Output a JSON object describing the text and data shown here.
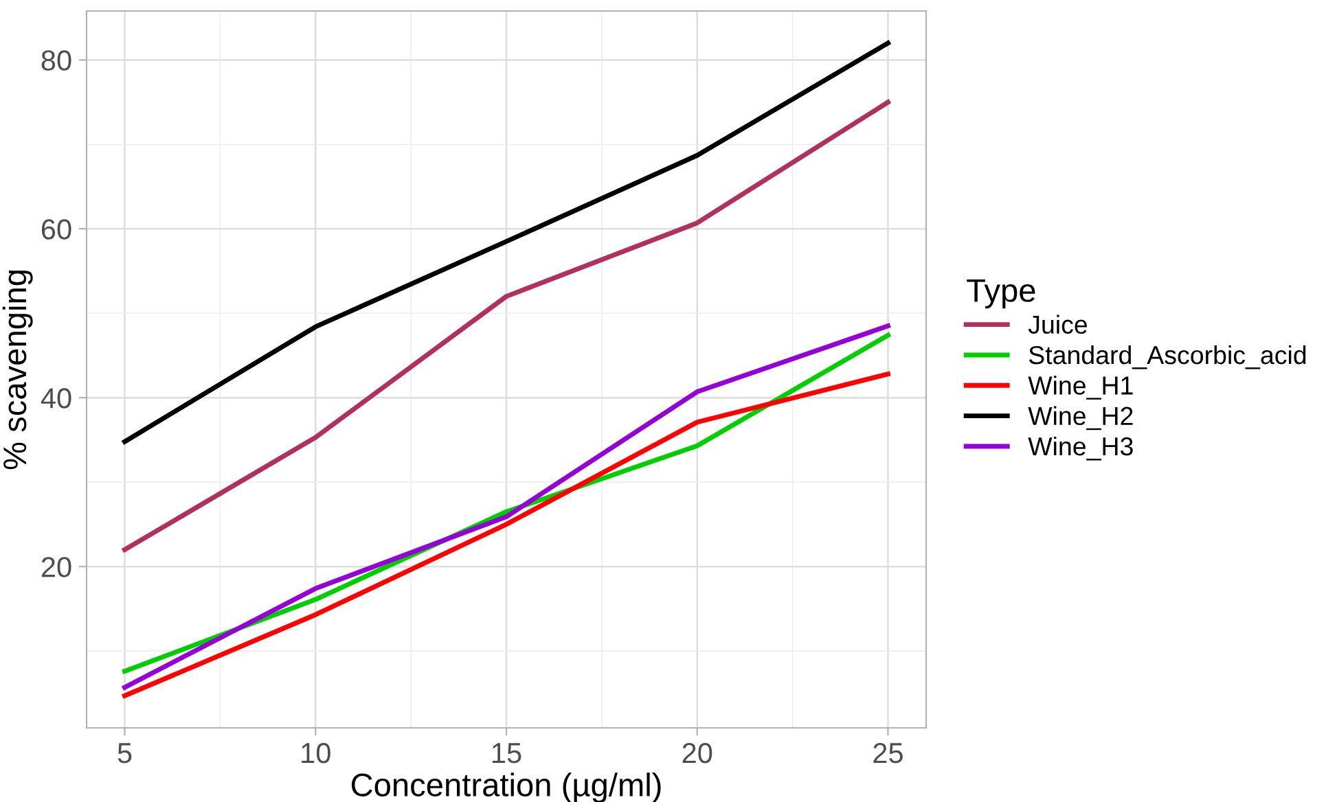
{
  "chart_data": {
    "type": "line",
    "xlabel": "Concentration (µg/ml)",
    "ylabel": "% scavenging",
    "legend_title": "Type",
    "x": [
      5,
      10,
      15,
      20,
      25
    ],
    "series": [
      {
        "name": "Juice",
        "color": "#b03060",
        "values": [
          22.0,
          35.3,
          52.0,
          60.7,
          75.0
        ]
      },
      {
        "name": "Standard_Ascorbic_acid",
        "color": "#00cd00",
        "values": [
          7.6,
          16.1,
          26.5,
          34.3,
          47.4
        ]
      },
      {
        "name": "Wine_H1",
        "color": "#ff0000",
        "values": [
          4.7,
          14.3,
          25.0,
          37.1,
          42.8
        ]
      },
      {
        "name": "Wine_H2",
        "color": "#000000",
        "values": [
          34.8,
          48.4,
          58.5,
          68.7,
          82.0
        ]
      },
      {
        "name": "Wine_H3",
        "color": "#9400d3",
        "values": [
          5.7,
          17.4,
          25.9,
          40.7,
          48.5
        ]
      }
    ],
    "xlim": [
      4,
      26
    ],
    "ylim": [
      0.9,
      85.8
    ],
    "xticks": [
      5,
      10,
      15,
      20,
      25
    ],
    "yticks": [
      20,
      40,
      60,
      80
    ],
    "grid": true,
    "legend": "right",
    "line_style": "solid",
    "marker": "none"
  }
}
